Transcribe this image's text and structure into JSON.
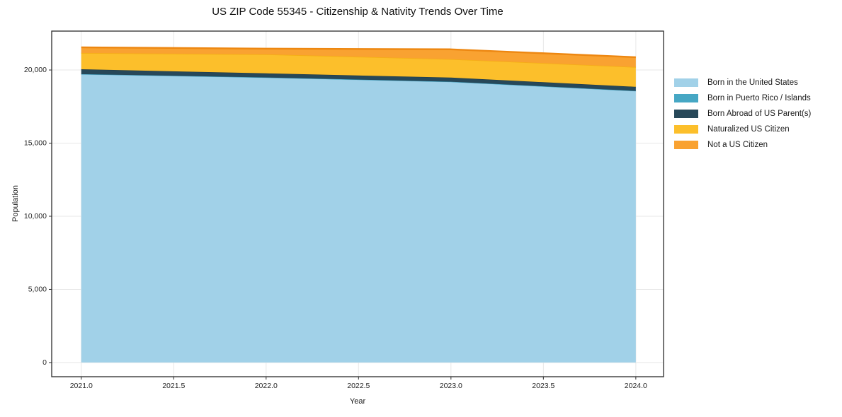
{
  "chart_data": {
    "type": "area",
    "stacked": true,
    "title": "US ZIP Code 55345 - Citizenship & Nativity Trends Over Time",
    "xlabel": "Year",
    "ylabel": "Population",
    "x": [
      2021,
      2022,
      2023,
      2024
    ],
    "series": [
      {
        "name": "Born in the United States",
        "color": "#a1d1e8",
        "edge": "#8ec6e0",
        "values": [
          19700,
          19470,
          19180,
          18550
        ]
      },
      {
        "name": "Born in Puerto Rico / Islands",
        "color": "#46a7c4",
        "edge": "#3b9cba",
        "values": [
          20,
          20,
          20,
          20
        ]
      },
      {
        "name": "Born Abroad of US Parent(s)",
        "color": "#274859",
        "edge": "#1f3947",
        "values": [
          330,
          280,
          280,
          280
        ]
      },
      {
        "name": "Naturalized US Citizen",
        "color": "#fcbf2b",
        "edge": "#f5ae14",
        "values": [
          1110,
          1300,
          1260,
          1350
        ]
      },
      {
        "name": "Not a US Citizen",
        "color": "#f9a231",
        "edge": "#ed8711",
        "values": [
          390,
          390,
          675,
          675
        ]
      }
    ],
    "x_ticks": {
      "values": [
        2021.0,
        2021.5,
        2022.0,
        2022.5,
        2023.0,
        2023.5,
        2024.0
      ],
      "labels": [
        "2021.0",
        "2021.5",
        "2022.0",
        "2022.5",
        "2023.0",
        "2023.5",
        "2024.0"
      ]
    },
    "y_ticks": {
      "values": [
        0,
        5000,
        10000,
        15000,
        20000
      ],
      "labels": [
        "0",
        "5,000",
        "10,000",
        "15,000",
        "20,000"
      ]
    },
    "xlim": [
      2020.84,
      2024.15
    ],
    "ylim": [
      -970,
      22660
    ],
    "grid": true,
    "grid_color": "#e7e7e7",
    "spine_color": "#2b2b2b",
    "tick_label_color": "#262626",
    "legend_position": "right"
  }
}
